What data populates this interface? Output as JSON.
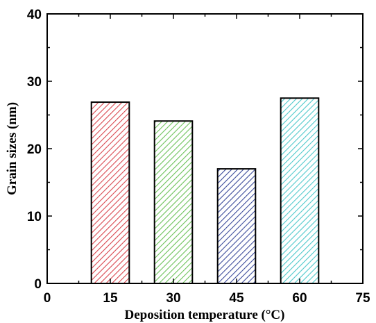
{
  "chart_data": {
    "type": "bar",
    "title": "",
    "xlabel": "Deposition temperature (°C)",
    "ylabel": "Grain sizes (nm)",
    "x": [
      15,
      30,
      45,
      60
    ],
    "values": [
      26.9,
      24.1,
      17.0,
      27.5
    ],
    "xlim": [
      0,
      75
    ],
    "ylim": [
      0,
      40
    ],
    "xticks": [
      0,
      15,
      30,
      45,
      60,
      75
    ],
    "yticks": [
      0,
      10,
      20,
      30,
      40
    ],
    "bar_width": 9,
    "grid": false,
    "legend": "none",
    "bar_colors": [
      "#d9474f",
      "#6cc25a",
      "#3a4a9a",
      "#4fc9cc"
    ],
    "bar_fill": "hatched"
  }
}
